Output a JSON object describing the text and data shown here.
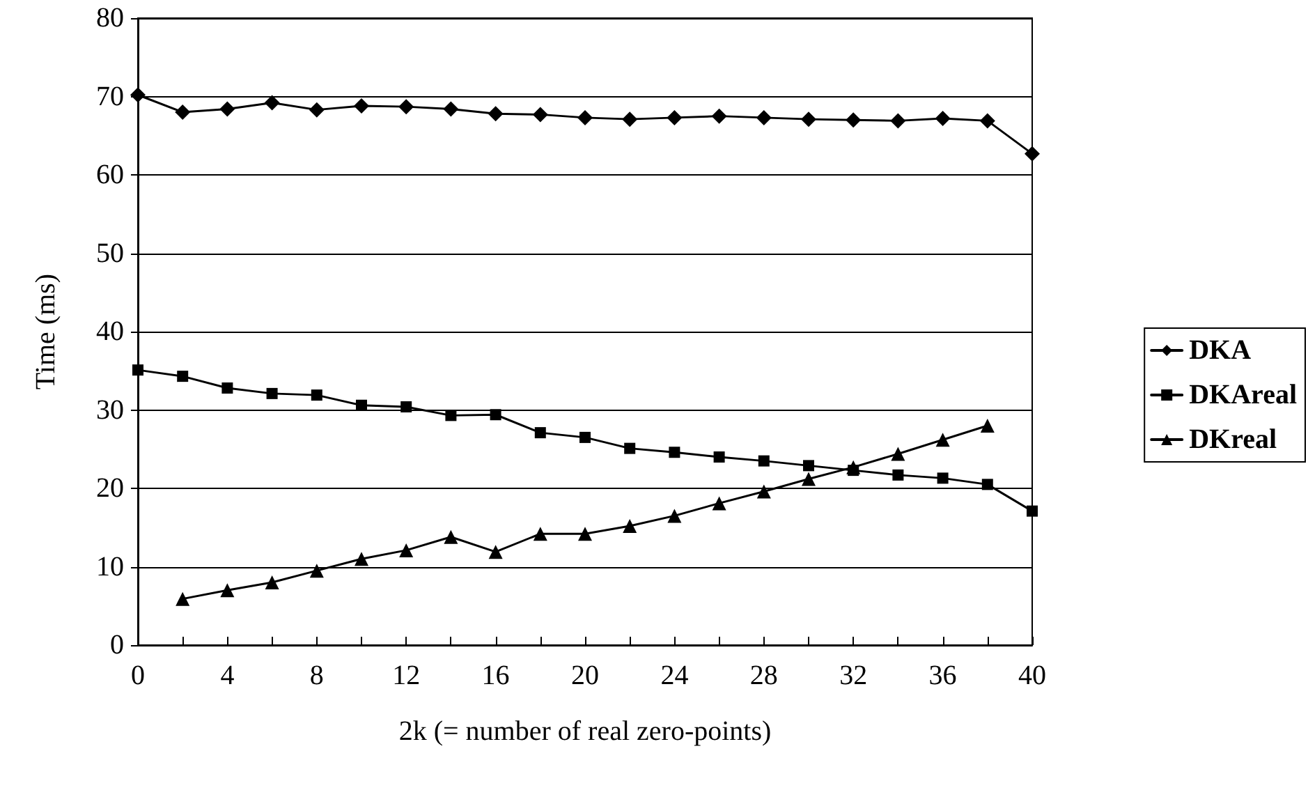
{
  "chart_data": {
    "type": "line",
    "xlabel": "2k (= number of real zero-points)",
    "ylabel": "Time (ms)",
    "xlim": [
      0,
      40
    ],
    "xticks": [
      0,
      {
        "value": 2,
        "label": null
      },
      4,
      {
        "value": 6,
        "label": null
      },
      8,
      {
        "value": 10,
        "label": null
      },
      12,
      {
        "value": 14,
        "label": null
      },
      16,
      {
        "value": 18,
        "label": null
      },
      20,
      {
        "value": 22,
        "label": null
      },
      24,
      {
        "value": 26,
        "label": null
      },
      28,
      {
        "value": 30,
        "label": null
      },
      32,
      {
        "value": 34,
        "label": null
      },
      36,
      {
        "value": 38,
        "label": null
      },
      40
    ],
    "ylim": [
      0,
      80
    ],
    "yticks": [
      0,
      10,
      20,
      30,
      40,
      50,
      60,
      70,
      80
    ],
    "grid": "y",
    "legend": "right",
    "line_style": "solid",
    "series": [
      {
        "name": "DKA",
        "color": "#000000",
        "marker": "diamond",
        "x": [
          0,
          2,
          4,
          6,
          8,
          10,
          12,
          14,
          16,
          18,
          20,
          22,
          24,
          26,
          28,
          30,
          32,
          34,
          36,
          38,
          40
        ],
        "values": [
          70.2,
          68.0,
          68.4,
          69.2,
          68.3,
          68.8,
          68.7,
          68.4,
          67.8,
          67.7,
          67.3,
          67.1,
          67.3,
          67.5,
          67.3,
          67.1,
          67.0,
          66.9,
          67.2,
          66.9,
          62.7
        ]
      },
      {
        "name": "DKAreal",
        "color": "#000000",
        "marker": "square",
        "x": [
          0,
          2,
          4,
          6,
          8,
          10,
          12,
          14,
          16,
          18,
          20,
          22,
          24,
          26,
          28,
          30,
          32,
          34,
          36,
          38,
          40
        ],
        "values": [
          35.1,
          34.3,
          32.8,
          32.1,
          31.9,
          30.6,
          30.4,
          29.3,
          29.4,
          27.1,
          26.5,
          25.1,
          24.6,
          24.0,
          23.5,
          22.9,
          22.3,
          21.7,
          21.3,
          20.5,
          17.1
        ]
      },
      {
        "name": "DKreal",
        "color": "#000000",
        "marker": "triangle",
        "x": [
          2,
          4,
          6,
          8,
          10,
          12,
          14,
          16,
          18,
          20,
          22,
          24,
          26,
          28,
          30,
          32,
          34,
          36,
          38
        ],
        "values": [
          5.9,
          7.0,
          8.0,
          9.5,
          11.0,
          12.1,
          13.8,
          11.9,
          14.2,
          14.2,
          15.2,
          16.5,
          18.1,
          19.6,
          21.2,
          22.7,
          24.4,
          26.2,
          28.0
        ]
      }
    ]
  }
}
